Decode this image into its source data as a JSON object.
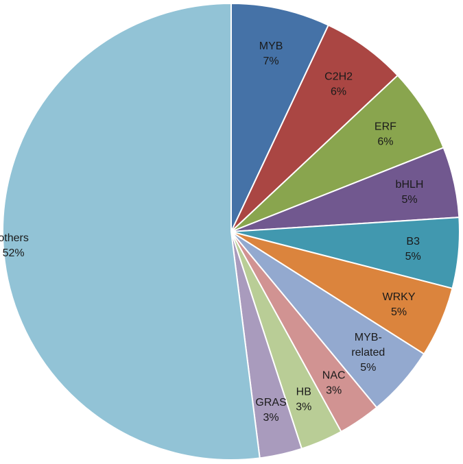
{
  "chart_data": {
    "type": "pie",
    "slices": [
      {
        "label": "MYB",
        "percent_label": "7%",
        "value": 7,
        "color": "#4572A7"
      },
      {
        "label": "C2H2",
        "percent_label": "6%",
        "value": 6,
        "color": "#AA4643"
      },
      {
        "label": "ERF",
        "percent_label": "6%",
        "value": 6,
        "color": "#89A54E"
      },
      {
        "label": "bHLH",
        "percent_label": "5%",
        "value": 5,
        "color": "#71588F"
      },
      {
        "label": "B3",
        "percent_label": "5%",
        "value": 5,
        "color": "#4198AF"
      },
      {
        "label": "WRKY",
        "percent_label": "5%",
        "value": 5,
        "color": "#DB843D"
      },
      {
        "label": "MYB-related",
        "label_lines": [
          "MYB-",
          "related"
        ],
        "percent_label": "5%",
        "value": 5,
        "color": "#93A9CF"
      },
      {
        "label": "NAC",
        "percent_label": "3%",
        "value": 3,
        "color": "#D19392"
      },
      {
        "label": "HB",
        "percent_label": "3%",
        "value": 3,
        "color": "#B9CD96"
      },
      {
        "label": "GRAS",
        "percent_label": "3%",
        "value": 3,
        "color": "#A99BBD"
      },
      {
        "label": "others",
        "percent_label": "52%",
        "value": 52,
        "color": "#92C3D6"
      }
    ],
    "start": "12 o'clock",
    "direction": "clockwise",
    "legend": "none"
  }
}
